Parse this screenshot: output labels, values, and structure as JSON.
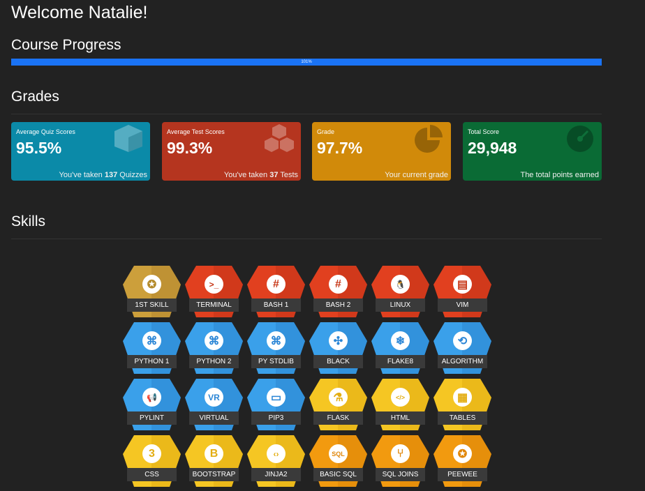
{
  "header": {
    "welcome": "Welcome Natalie!"
  },
  "progress": {
    "title": "Course Progress",
    "label": "101%",
    "fill_percent": 100
  },
  "grades": {
    "title": "Grades",
    "cards": [
      {
        "title": "Average Quiz Scores",
        "value": "95.5%",
        "foot_pre": "You've taken ",
        "foot_bold": "137",
        "foot_post": " Quizzes",
        "color": "#0b8aa8",
        "icon": "cube-icon"
      },
      {
        "title": "Average Test Scores",
        "value": "99.3%",
        "foot_pre": "You've taken ",
        "foot_bold": "37",
        "foot_post": " Tests",
        "color": "#b5351f",
        "icon": "cubes-icon"
      },
      {
        "title": "Grade",
        "value": "97.7%",
        "foot_pre": "Your current grade",
        "foot_bold": "",
        "foot_post": "",
        "color": "#d18a0a",
        "icon": "pie-chart-icon"
      },
      {
        "title": "Total Score",
        "value": "29,948",
        "foot_pre": "The total points earned",
        "foot_bold": "",
        "foot_post": "",
        "color": "#0a6b35",
        "icon": "gauge-icon"
      }
    ]
  },
  "skills": {
    "title": "Skills",
    "badges": [
      {
        "label": "1ST SKILL",
        "icon": "medal-icon",
        "glyph": "✪",
        "color": "#cc9f3b",
        "dark": "#a57c27",
        "icon_color": "#b38a2b"
      },
      {
        "label": "TERMINAL",
        "icon": "terminal-icon",
        "glyph": ">_",
        "color": "#e1401f",
        "dark": "#b52f14",
        "icon_color": "#c73717"
      },
      {
        "label": "BASH 1",
        "icon": "hashtag-icon",
        "glyph": "#",
        "color": "#e1401f",
        "dark": "#b52f14",
        "icon_color": "#c73717"
      },
      {
        "label": "BASH 2",
        "icon": "hashtag-icon",
        "glyph": "#",
        "color": "#e1401f",
        "dark": "#b52f14",
        "icon_color": "#c73717"
      },
      {
        "label": "LINUX",
        "icon": "linux-icon",
        "glyph": "🐧",
        "color": "#e1401f",
        "dark": "#b52f14",
        "icon_color": "#c73717"
      },
      {
        "label": "VIM",
        "icon": "file-icon",
        "glyph": "▤",
        "color": "#e1401f",
        "dark": "#b52f14",
        "icon_color": "#c73717"
      },
      {
        "label": "PYTHON 1",
        "icon": "python-icon",
        "glyph": "⌘",
        "color": "#3aa0ea",
        "dark": "#2477c4",
        "icon_color": "#2b86d6"
      },
      {
        "label": "PYTHON 2",
        "icon": "python-icon",
        "glyph": "⌘",
        "color": "#3aa0ea",
        "dark": "#2477c4",
        "icon_color": "#2b86d6"
      },
      {
        "label": "PY STDLIB",
        "icon": "python-icon",
        "glyph": "⌘",
        "color": "#3aa0ea",
        "dark": "#2477c4",
        "icon_color": "#2b86d6"
      },
      {
        "label": "BLACK",
        "icon": "compress-icon",
        "glyph": "✣",
        "color": "#3aa0ea",
        "dark": "#2477c4",
        "icon_color": "#2b86d6"
      },
      {
        "label": "FLAKE8",
        "icon": "snowflake-icon",
        "glyph": "❄",
        "color": "#3aa0ea",
        "dark": "#2477c4",
        "icon_color": "#2b86d6"
      },
      {
        "label": "ALGORITHM",
        "icon": "algorithm-icon",
        "glyph": "⟲",
        "color": "#3aa0ea",
        "dark": "#2477c4",
        "icon_color": "#2b86d6"
      },
      {
        "label": "PYLINT",
        "icon": "megaphone-icon",
        "glyph": "📢",
        "color": "#3aa0ea",
        "dark": "#2477c4",
        "icon_color": "#2b86d6"
      },
      {
        "label": "VIRTUAL",
        "icon": "vr-icon",
        "glyph": "VR",
        "color": "#3aa0ea",
        "dark": "#2477c4",
        "icon_color": "#2b86d6"
      },
      {
        "label": "PIP3",
        "icon": "keyboard-icon",
        "glyph": "▭",
        "color": "#3aa0ea",
        "dark": "#2477c4",
        "icon_color": "#2b86d6"
      },
      {
        "label": "FLASK",
        "icon": "flask-icon",
        "glyph": "⚗",
        "color": "#f5c623",
        "dark": "#d9a10c",
        "icon_color": "#e3ad12"
      },
      {
        "label": "HTML",
        "icon": "code-icon",
        "glyph": "</>",
        "color": "#f5c623",
        "dark": "#d9a10c",
        "icon_color": "#e3ad12"
      },
      {
        "label": "TABLES",
        "icon": "table-icon",
        "glyph": "▦",
        "color": "#f5c623",
        "dark": "#d9a10c",
        "icon_color": "#e3ad12"
      },
      {
        "label": "CSS",
        "icon": "css-icon",
        "glyph": "3",
        "color": "#f5c623",
        "dark": "#d9a10c",
        "icon_color": "#e3ad12"
      },
      {
        "label": "BOOTSTRAP",
        "icon": "bootstrap-icon",
        "glyph": "B",
        "color": "#f5c623",
        "dark": "#d9a10c",
        "icon_color": "#e3ad12"
      },
      {
        "label": "JINJA2",
        "icon": "file-code-icon",
        "glyph": "‹›",
        "color": "#f5c623",
        "dark": "#d9a10c",
        "icon_color": "#e3ad12"
      },
      {
        "label": "BASIC SQL",
        "icon": "sql-file-icon",
        "glyph": "SQL",
        "color": "#f29a0f",
        "dark": "#d27a05",
        "icon_color": "#e08608"
      },
      {
        "label": "SQL JOINS",
        "icon": "code-branch-icon",
        "glyph": "⑂",
        "color": "#f29a0f",
        "dark": "#d27a05",
        "icon_color": "#e08608"
      },
      {
        "label": "PEEWEE",
        "icon": "award-icon",
        "glyph": "✪",
        "color": "#f29a0f",
        "dark": "#d27a05",
        "icon_color": "#e08608"
      }
    ]
  }
}
